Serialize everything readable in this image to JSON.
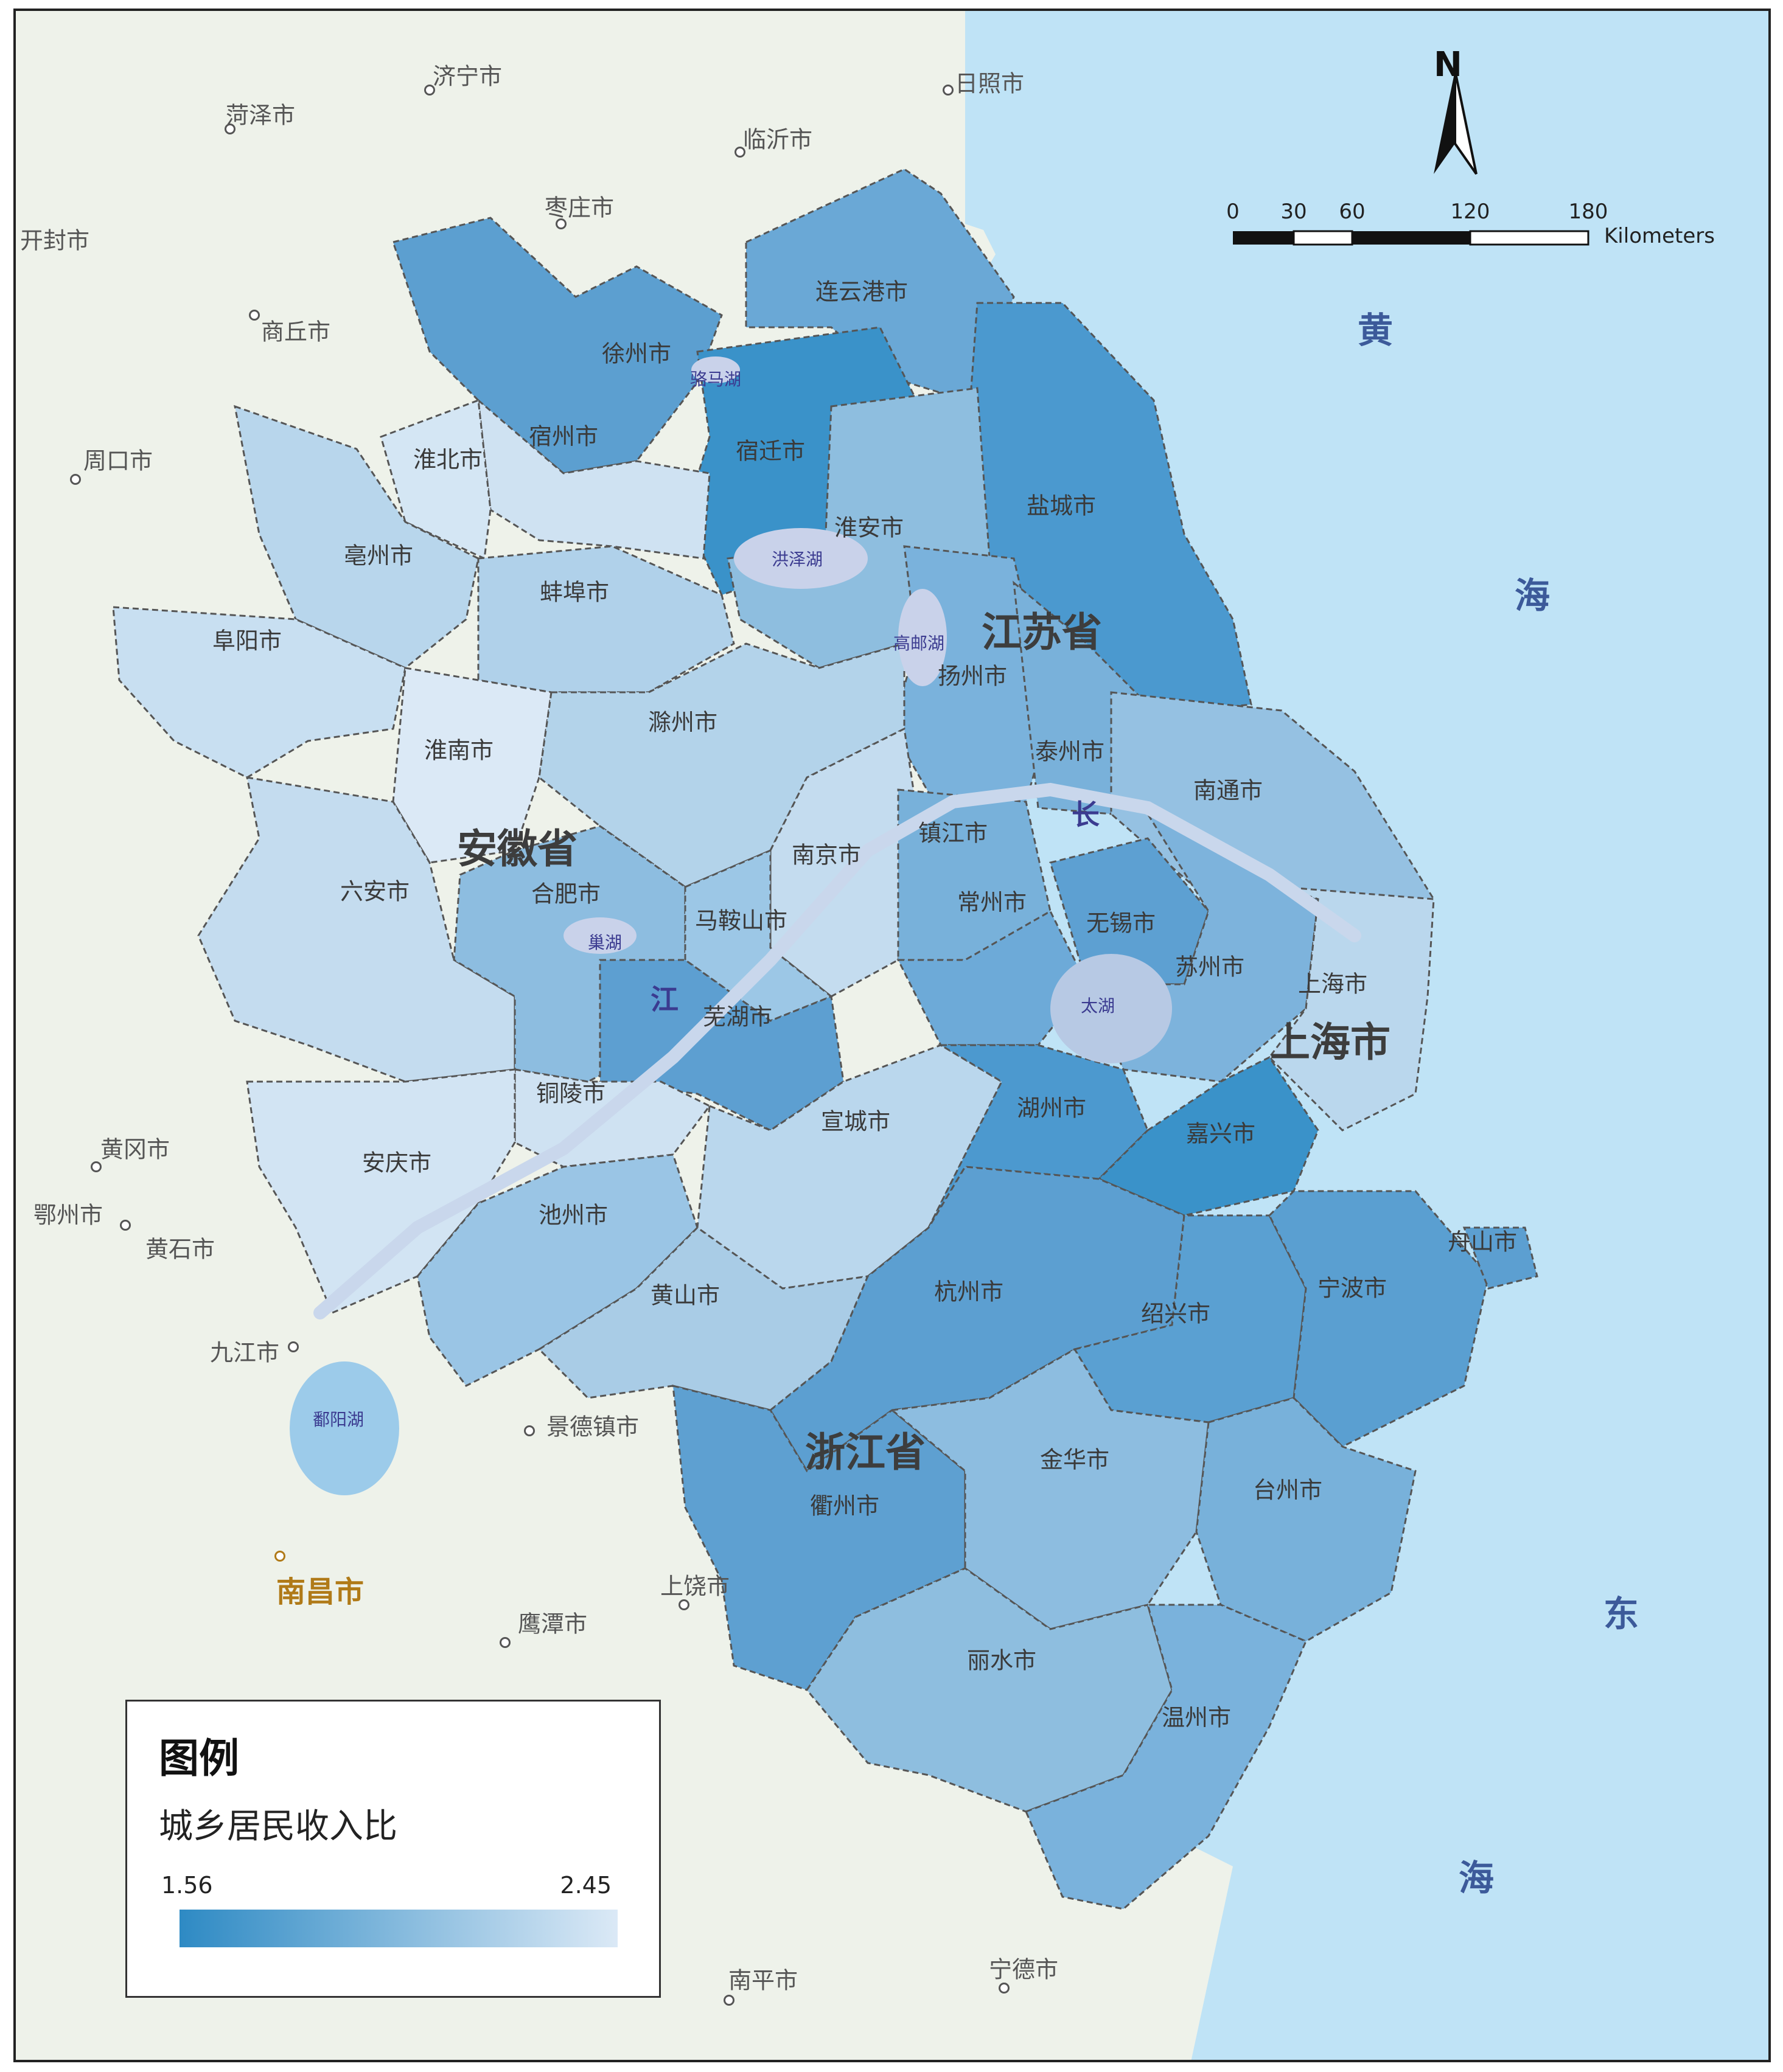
{
  "legend": {
    "title": "图例",
    "subtitle": "城乡居民收入比",
    "min_label": "1.56",
    "max_label": "2.45",
    "color_low": "#2e8ac4",
    "color_high": "#dbe9f6"
  },
  "scale_bar": {
    "ticks": [
      "0",
      "30",
      "60",
      "120",
      "180"
    ],
    "units": "Kilometers"
  },
  "north_arrow": {
    "letter": "N"
  },
  "provinces": [
    "江苏省",
    "安徽省",
    "浙江省",
    "上海市"
  ],
  "cities": {
    "xuzhou": "徐州市",
    "lianyungang": "连云港市",
    "suqian": "宿迁市",
    "suzhou_ah": "宿州市",
    "huaibei": "淮北市",
    "bozhou": "亳州市",
    "fuyang": "阜阳市",
    "bengbu": "蚌埠市",
    "huaian": "淮安市",
    "yancheng": "盐城市",
    "yangzhou": "扬州市",
    "taizhou_js": "泰州市",
    "nantong": "南通市",
    "huainan": "淮南市",
    "chuzhou": "滁州市",
    "liuan": "六安市",
    "hefei": "合肥市",
    "nanjing": "南京市",
    "zhenjiang": "镇江市",
    "changzhou": "常州市",
    "wuxi": "无锡市",
    "suzhou_js": "苏州市",
    "shanghai": "上海市",
    "maanshan": "马鞍山市",
    "wuhu": "芜湖市",
    "tongling": "铜陵市",
    "anqing": "安庆市",
    "chizhou": "池州市",
    "xuancheng": "宣城市",
    "huangshan": "黄山市",
    "huzhou": "湖州市",
    "jiaxing": "嘉兴市",
    "hangzhou": "杭州市",
    "shaoxing": "绍兴市",
    "ningbo": "宁波市",
    "zhoushan": "舟山市",
    "quzhou": "衢州市",
    "jinhua": "金华市",
    "taizhou_zj": "台州市",
    "lishui": "丽水市",
    "wenzhou": "温州市"
  },
  "external_places": {
    "jining": "济宁市",
    "heze": "菏泽市",
    "rizhao": "日照市",
    "linyi": "临沂市",
    "zaozhuang": "枣庄市",
    "kaifeng": "开封市",
    "shangqiu": "商丘市",
    "zhoukou": "周口市",
    "huanggang": "黄冈市",
    "ezhou": "鄂州市",
    "huangshi": "黄石市",
    "jiujiang": "九江市",
    "jingdezhen": "景德镇市",
    "shangrao": "上饶市",
    "yingtan": "鹰潭市",
    "nanping": "南平市",
    "ningde": "宁德市",
    "nanchang": "南昌市"
  },
  "lakes": {
    "luoma": "骆马湖",
    "hongze": "洪泽湖",
    "gaoyou": "高邮湖",
    "chao": "巢湖",
    "tai": "太湖",
    "poyang": "鄱阳湖"
  },
  "river_chars": [
    "长",
    "江"
  ],
  "sea_chars": {
    "huang": "黄",
    "hai1": "海",
    "dong": "东",
    "hai2": "海"
  },
  "colors": {
    "sea": "#bfe3f6",
    "outside_land": "#eef2ea",
    "study_area_base": "#a9cce6",
    "darkest_unit": "#3a92c9"
  },
  "choropleth_ratio_note": "城乡居民收入比"
}
